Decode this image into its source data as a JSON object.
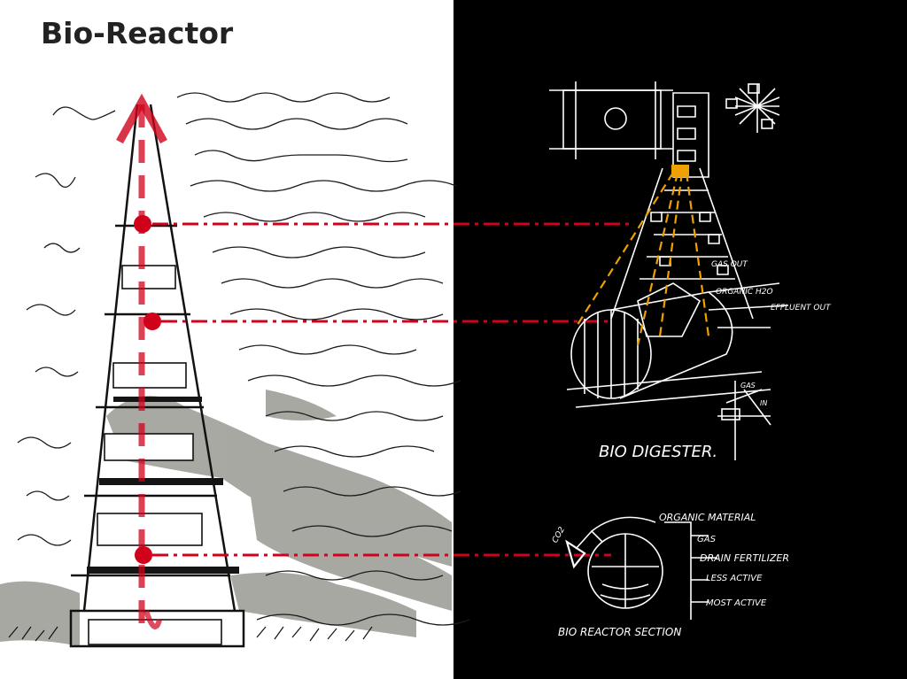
{
  "title": "Bio-Reactor",
  "digester": {
    "caption": "BIO DIGESTER.",
    "labels": {
      "gas_out": "GAS OUT",
      "organic_h2o": "ORGANIC H2O",
      "effluent_out": "EFFLUENT OUT",
      "gas": "GAS",
      "in": "IN"
    }
  },
  "reactor_section": {
    "caption": "BIO REACTOR SECTION",
    "labels": {
      "co2": "CO2",
      "organic_material": "ORGANIC MATERIAL",
      "gas": "GAS",
      "drain_fertilizer": "DRAIN FERTILIZER",
      "less_active": "LESS ACTIVE",
      "most_active": "MOST ACTIVE"
    }
  },
  "colors": {
    "accent_red": "#d0021b",
    "highlight_orange": "#f0a000",
    "panel_black": "#000000",
    "sketch_white": "#ffffff"
  }
}
